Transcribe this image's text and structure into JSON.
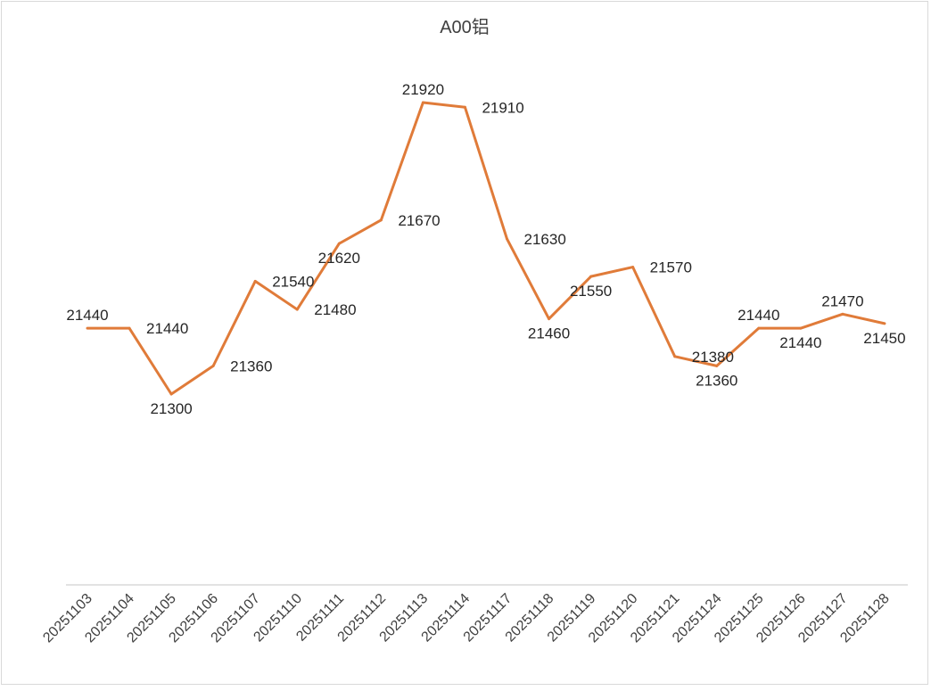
{
  "chart_data": {
    "type": "line",
    "title": "A00铝",
    "xlabel": "",
    "ylabel": "",
    "ylim": [
      20800,
      22000
    ],
    "grid": false,
    "legend": "none",
    "categories": [
      "20251103",
      "20251104",
      "20251105",
      "20251106",
      "20251107",
      "20251110",
      "20251111",
      "20251112",
      "20251113",
      "20251114",
      "20251117",
      "20251118",
      "20251119",
      "20251120",
      "20251121",
      "20251124",
      "20251125",
      "20251126",
      "20251127",
      "20251128"
    ],
    "series": [
      {
        "name": "A00铝",
        "values": [
          21440,
          21440,
          21300,
          21360,
          21540,
          21480,
          21620,
          21670,
          21920,
          21910,
          21630,
          21460,
          21550,
          21570,
          21380,
          21360,
          21440,
          21440,
          21470,
          21450
        ]
      }
    ],
    "label_positions": [
      "above",
      "right",
      "below",
      "right",
      "right",
      "right",
      "below",
      "right",
      "above",
      "right",
      "right",
      "below",
      "below",
      "right",
      "right",
      "below",
      "above",
      "below",
      "above",
      "below"
    ],
    "colors": {
      "line": "#E07B39",
      "drop": "#9DC3E6",
      "axis": "#d9d9d9"
    }
  }
}
